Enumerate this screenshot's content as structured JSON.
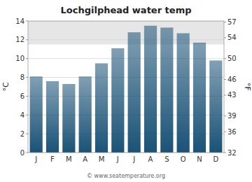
{
  "chart_data": {
    "type": "bar",
    "title": "Lochgilphead water temp",
    "categories": [
      "J",
      "F",
      "M",
      "A",
      "M",
      "J",
      "J",
      "A",
      "S",
      "O",
      "N",
      "D"
    ],
    "values": [
      8.1,
      7.6,
      7.3,
      8.1,
      9.5,
      11.1,
      12.8,
      13.5,
      13.3,
      12.7,
      11.7,
      9.8
    ],
    "color": "#1a5276",
    "ylabel": "°C",
    "y2label": "°F",
    "ylim": [
      0,
      14
    ],
    "yticks": [
      0,
      2,
      4,
      6,
      8,
      10,
      12,
      14
    ],
    "y2lim": [
      32,
      57.2
    ],
    "y2ticks": [
      32,
      36,
      39,
      43,
      46,
      50,
      54,
      57
    ],
    "shade_band": [
      11.5,
      14.0
    ],
    "grid": true,
    "annotation": "© www.seatemperature.org"
  }
}
